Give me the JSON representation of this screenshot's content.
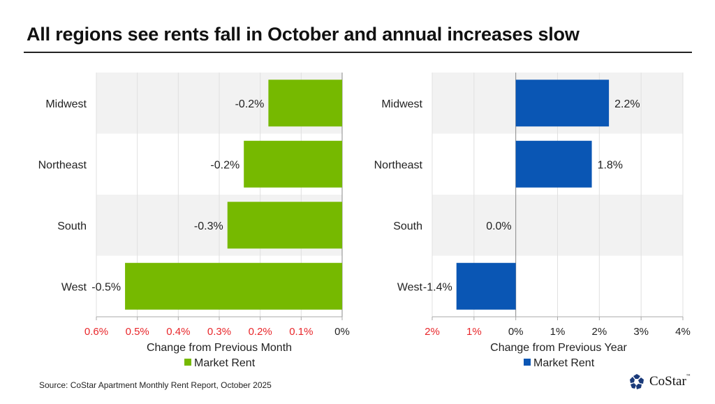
{
  "title": "All regions see rents fall in October and annual increases slow",
  "source": "Source: CoStar Apartment Monthly Rent Report, October 2025",
  "logo": {
    "text": "CoStar",
    "tm": "™"
  },
  "chart_data": [
    {
      "type": "bar",
      "orientation": "horizontal",
      "categories": [
        "Midwest",
        "Northeast",
        "South",
        "West"
      ],
      "series": [
        {
          "name": "Market Rent",
          "values": [
            -0.18,
            -0.24,
            -0.28,
            -0.53
          ],
          "color": "#76b900"
        }
      ],
      "data_labels": [
        "-0.2%",
        "-0.2%",
        "-0.3%",
        "-0.5%"
      ],
      "xlabel": "Change from Previous Month",
      "xlim": [
        -0.6,
        0
      ],
      "x_ticks": [
        "0.6%",
        "0.5%",
        "0.4%",
        "0.3%",
        "0.2%",
        "0.1%",
        "0%"
      ],
      "x_tick_values": [
        -0.6,
        -0.5,
        -0.4,
        -0.3,
        -0.2,
        -0.1,
        0
      ],
      "negative_tick_color": "#e8262a",
      "grid": true,
      "legend": "bottom"
    },
    {
      "type": "bar",
      "orientation": "horizontal",
      "categories": [
        "Midwest",
        "Northeast",
        "South",
        "West"
      ],
      "series": [
        {
          "name": "Market Rent",
          "values": [
            2.23,
            1.82,
            0.0,
            -1.42
          ],
          "color": "#0a56b4"
        }
      ],
      "data_labels": [
        "2.2%",
        "1.8%",
        "0.0%",
        "-1.4%"
      ],
      "xlabel": "Change from Previous Year",
      "xlim": [
        -2,
        4
      ],
      "x_ticks": [
        "2%",
        "1%",
        "0%",
        "1%",
        "2%",
        "3%",
        "4%"
      ],
      "x_tick_values": [
        -2,
        -1,
        0,
        1,
        2,
        3,
        4
      ],
      "negative_tick_color": "#e8262a",
      "grid": true,
      "legend": "bottom"
    }
  ]
}
